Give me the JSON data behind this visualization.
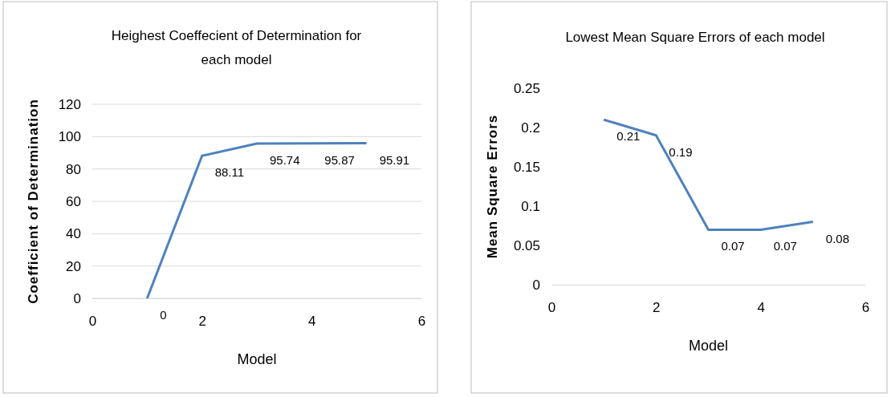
{
  "chart_data": [
    {
      "type": "line",
      "title": "Heighest Coeffecient of Determination for each model",
      "xlabel": "Model",
      "ylabel": "Coefficient of Determination",
      "x": [
        1,
        2,
        3,
        4,
        5
      ],
      "series": [
        {
          "color": "#4f81bd",
          "values": [
            0,
            88.11,
            95.74,
            95.87,
            95.91
          ]
        }
      ],
      "xlim": [
        0,
        6
      ],
      "xticks": [
        0,
        2,
        4,
        6
      ],
      "ylim": [
        0,
        120
      ],
      "yticks": [
        0,
        20,
        40,
        60,
        80,
        100,
        120
      ],
      "grid": "y",
      "data_labels": true,
      "marker": "none",
      "line_style": "solid"
    },
    {
      "type": "line",
      "title": "Lowest Mean Square Errors of each model",
      "xlabel": "Model",
      "ylabel": "Mean Square Errors",
      "x": [
        1,
        2,
        3,
        4,
        5
      ],
      "series": [
        {
          "color": "#4f81bd",
          "values": [
            0.21,
            0.19,
            0.07,
            0.07,
            0.08
          ]
        }
      ],
      "xlim": [
        0,
        6
      ],
      "xticks": [
        0,
        2,
        4,
        6
      ],
      "ylim": [
        0,
        0.25
      ],
      "yticks": [
        0,
        0.05,
        0.1,
        0.15,
        0.2,
        0.25
      ],
      "data_labels": true,
      "marker": "none",
      "line_style": "solid"
    }
  ]
}
